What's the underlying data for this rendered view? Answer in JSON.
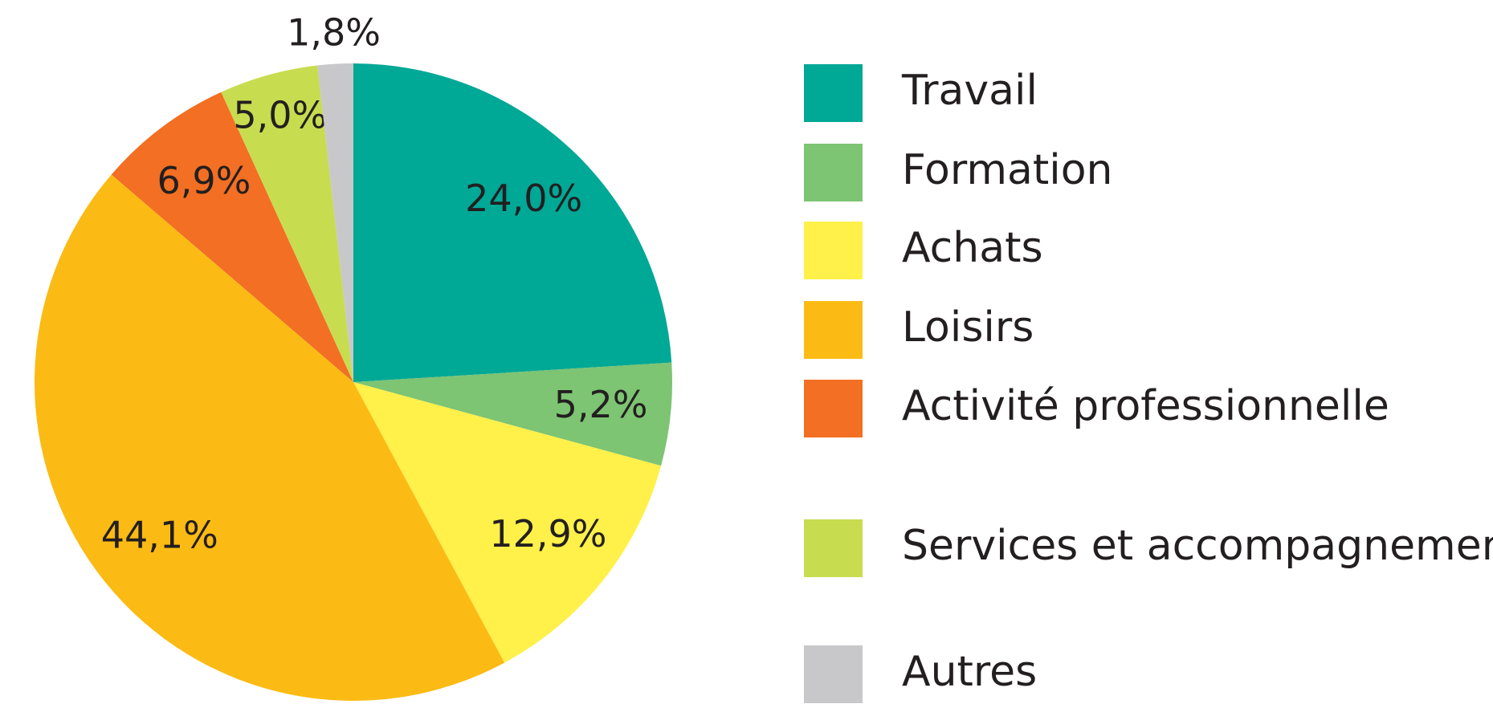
{
  "chart_data": {
    "type": "pie",
    "categories": [
      "Travail",
      "Formation",
      "Achats",
      "Loisirs",
      "Activité professionnelle",
      "Services et accompagnement",
      "Autres"
    ],
    "values": [
      24.0,
      5.2,
      12.9,
      44.1,
      6.9,
      5.0,
      1.8
    ],
    "value_labels": [
      "24,0%",
      "5,2%",
      "12,9%",
      "44,1%",
      "6,9%",
      "5,0%",
      "1,8%"
    ],
    "colors": [
      "#00a896",
      "#7dc473",
      "#fff04a",
      "#fbbb14",
      "#f26f23",
      "#c8dc50",
      "#c8c8ca"
    ]
  }
}
